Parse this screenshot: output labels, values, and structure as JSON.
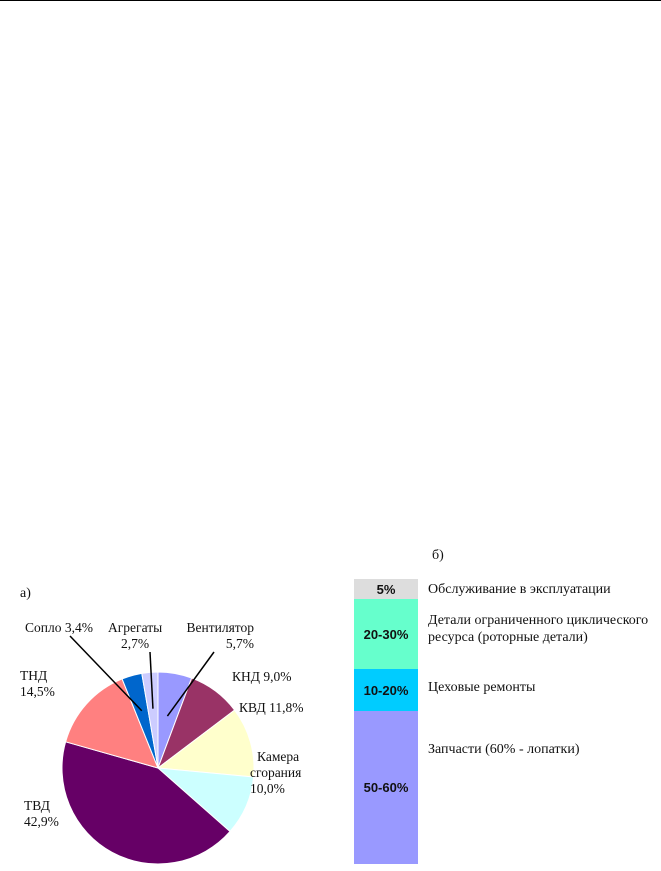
{
  "panel_a_label": "а)",
  "panel_b_label": "б)",
  "chart_data": [
    {
      "type": "pie",
      "title": "",
      "slices": [
        {
          "label": "Вентилятор",
          "percent_text": "5,7%",
          "value": 5.7,
          "color": "#9999ff"
        },
        {
          "label": "КНД",
          "percent_text": "9,0%",
          "value": 9.0,
          "color": "#993366"
        },
        {
          "label": "КВД",
          "percent_text": "11,8%",
          "value": 11.8,
          "color": "#ffffcc"
        },
        {
          "label": "Камера сгорания",
          "label_line1": "Камера",
          "label_line2": "сгорания",
          "percent_text": "10,0%",
          "value": 10.0,
          "color": "#ccffff"
        },
        {
          "label": "ТВД",
          "percent_text": "42,9%",
          "value": 42.9,
          "color": "#660066"
        },
        {
          "label": "ТНД",
          "percent_text": "14,5%",
          "value": 14.5,
          "color": "#ff8080"
        },
        {
          "label": "Сопло",
          "percent_text": "3,4%",
          "value": 3.4,
          "color": "#0066cc"
        },
        {
          "label": "Агрегаты",
          "percent_text": "2,7%",
          "value": 2.7,
          "color": "#ccccff"
        }
      ],
      "start_angle_deg": 0,
      "direction": "clockwise"
    },
    {
      "type": "bar",
      "orientation": "stacked-vertical",
      "segments": [
        {
          "value_text": "5%",
          "value": 5,
          "description": "Обслуживание в эксплуатации",
          "color": "#dddddd"
        },
        {
          "value_text": "20-30%",
          "value": 25,
          "description": "Детали ограниченного циклического ресурса (роторные детали)",
          "line1": "Детали ограниченного циклического",
          "line2": "ресурса (роторные детали)",
          "color": "#66ffcc"
        },
        {
          "value_text": "10-20%",
          "value": 15,
          "description": "Цеховые ремонты",
          "color": "#00ccff"
        },
        {
          "value_text": "50-60%",
          "value": 55,
          "description": "Запчасти (60% - лопатки)",
          "color": "#9999ff"
        }
      ]
    }
  ]
}
